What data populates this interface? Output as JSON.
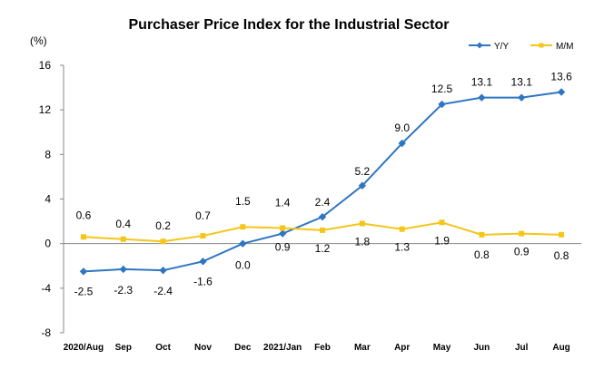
{
  "chart_data": {
    "type": "line",
    "title": "Purchaser Price Index for the Industrial  Sector",
    "unit_label": "(%)",
    "categories": [
      "2020/Aug",
      "Sep",
      "Oct",
      "Nov",
      "Dec",
      "2021/Jan",
      "Feb",
      "Mar",
      "Apr",
      "May",
      "Jun",
      "Jul",
      "Aug"
    ],
    "ylim": [
      -8,
      16
    ],
    "yticks": [
      -8,
      -4,
      0,
      4,
      8,
      12,
      16
    ],
    "grid": false,
    "legend_position": "top-right",
    "series": [
      {
        "name": "Y/Y",
        "color": "#2E75C2",
        "marker": "diamond",
        "values": [
          -2.5,
          -2.3,
          -2.4,
          -1.6,
          0.0,
          0.9,
          2.4,
          5.2,
          9.0,
          12.5,
          13.1,
          13.1,
          13.6
        ],
        "labels": [
          "-2.5",
          "-2.3",
          "-2.4",
          "-1.6",
          "0.0",
          "0.9",
          "2.4",
          "5.2",
          "9.0",
          "12.5",
          "13.1",
          "13.1",
          "13.6"
        ]
      },
      {
        "name": "M/M",
        "color": "#F5C518",
        "marker": "square",
        "values": [
          0.6,
          0.4,
          0.2,
          0.7,
          1.5,
          1.4,
          1.2,
          1.8,
          1.3,
          1.9,
          0.8,
          0.9,
          0.8
        ],
        "labels": [
          "0.6",
          "0.4",
          "0.2",
          "0.7",
          "1.5",
          "1.4",
          "1.2",
          "1.8",
          "1.3",
          "1.9",
          "0.8",
          "0.9",
          "0.8"
        ]
      }
    ]
  }
}
